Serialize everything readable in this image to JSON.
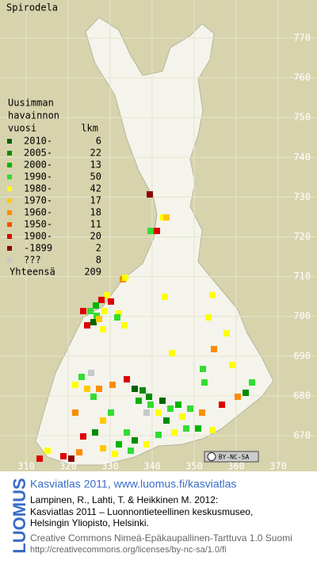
{
  "title": "Spirodela",
  "legend": {
    "header": [
      "Uusimman",
      "havainnon",
      "vuosi"
    ],
    "count_header": "lkm",
    "rows": [
      {
        "label": "2010-",
        "count": 6,
        "color": "#006400"
      },
      {
        "label": "2005-",
        "count": 22,
        "color": "#008c00"
      },
      {
        "label": "2000-",
        "count": 13,
        "color": "#00b400"
      },
      {
        "label": "1990-",
        "count": 50,
        "color": "#32dc32"
      },
      {
        "label": "1980-",
        "count": 42,
        "color": "#ffff00"
      },
      {
        "label": "1970-",
        "count": 17,
        "color": "#ffc800"
      },
      {
        "label": "1960-",
        "count": 18,
        "color": "#ff8c00"
      },
      {
        "label": "1950-",
        "count": 11,
        "color": "#ff5000"
      },
      {
        "label": "1900-",
        "count": 20,
        "color": "#dc0000"
      },
      {
        "label": "-1899",
        "count": 2,
        "color": "#8c0000"
      },
      {
        "label": "???",
        "count": 8,
        "color": "#c8c8c8"
      }
    ],
    "total_label": "Yhteensä",
    "total": 209
  },
  "x_axis": [
    310,
    320,
    330,
    340,
    350,
    360,
    370
  ],
  "y_axis": [
    770,
    760,
    750,
    740,
    730,
    720,
    710,
    700,
    690,
    680,
    670
  ],
  "license_badge": "BY-NC-SA",
  "footer": {
    "logo": "LUOMUS",
    "heading": "Kasviatlas 2011, www.luomus.fi/kasviatlas",
    "citation": [
      "Lampinen, R., Lahti, T. & Heikkinen M. 2012:",
      "Kasviatlas 2011 – Luonnontieteellinen keskusmuseo,",
      "Helsingin Yliopisto, Helsinki."
    ],
    "license": [
      "Creative Commons Nimeä-Epäkaupallinen-Tarttuva 1.0 Suomi",
      "http://creativecommons.org/licenses/by-nc-sa/1.0/fi"
    ]
  }
}
